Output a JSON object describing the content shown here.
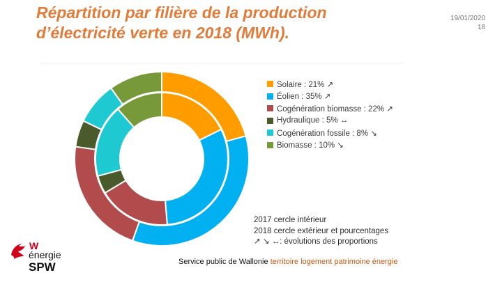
{
  "slide": {
    "title_line1": "Répartition par filière de la production",
    "title_line2": "d’électricité verte en 2018 (MWh).",
    "date": "19/01/2020",
    "page_number": "18"
  },
  "chart_data": {
    "type": "pie",
    "subtype": "double-donut",
    "title": "",
    "categories": [
      "Solaire",
      "Éolien",
      "Cogénération biomasse",
      "Hydraulique",
      "Cogénération fossile",
      "Biomasse"
    ],
    "colors": [
      "#ff9c00",
      "#00b0f0",
      "#b24c4c",
      "#4a5a2a",
      "#1fc9d1",
      "#78993a"
    ],
    "series": [
      {
        "name": "2017",
        "values": [
          20,
          35,
          20,
          5,
          20,
          13
        ]
      },
      {
        "name": "2018",
        "values": [
          21,
          35,
          22,
          5,
          8,
          10
        ]
      }
    ],
    "legend": [
      {
        "label": "Solaire : 21% ↗"
      },
      {
        "label": "Éolien : 35% ↗"
      },
      {
        "label": "Cogénération biomasse : 22% ↗"
      },
      {
        "label": "Hydraulique : 5% ↔"
      },
      {
        "label": "Cogénération fossile : 8% ↘"
      },
      {
        "label": "Biomasse : 10% ↘"
      }
    ],
    "legend_position": "right",
    "notes": [
      "2017 cercle intérieur",
      "2018 cercle extérieur et pourcentages",
      "↗ ↘ ↔: évolutions des proportions"
    ]
  },
  "logo": {
    "line1": "W",
    "line2": "énergie",
    "line3": "SPW"
  },
  "footer": {
    "part1": "Service public de Wallonie",
    "part2": "territoire logement patrimoine énergie"
  }
}
